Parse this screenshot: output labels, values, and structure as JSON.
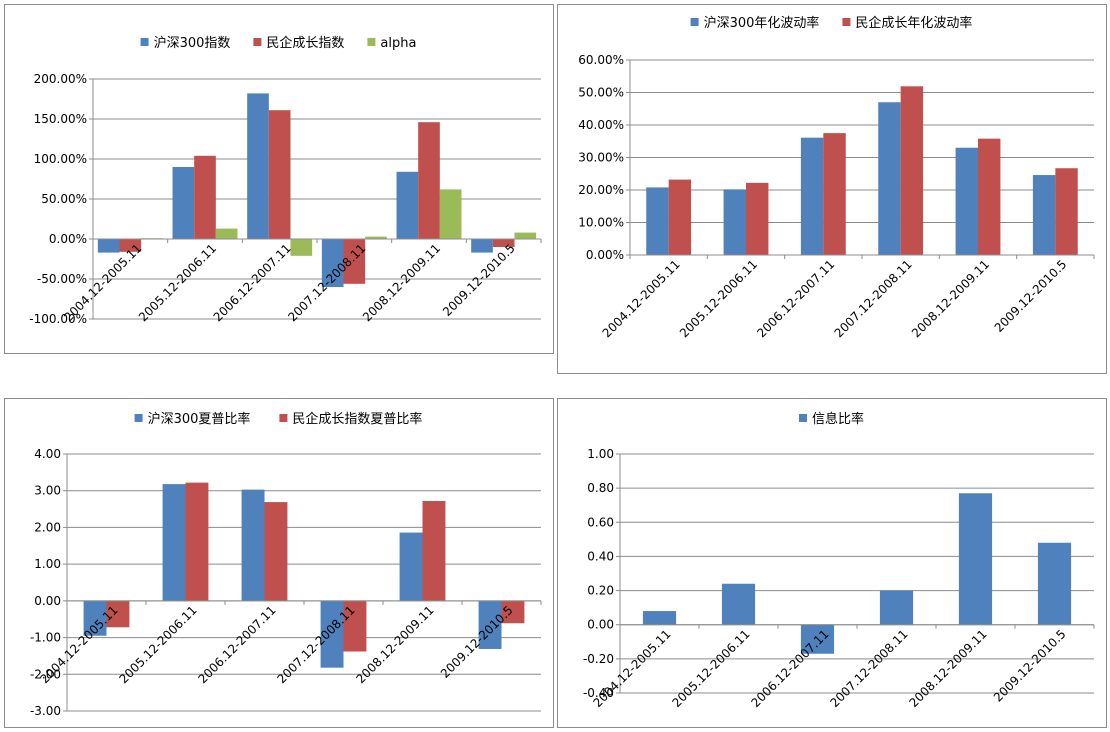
{
  "chart_data": [
    {
      "type": "bar",
      "categories": [
        "2004.12-2005.11",
        "2005.12-2006.11",
        "2006.12-2007.11",
        "2007.12-2008.11",
        "2008.12-2009.11",
        "2009.12-2010.5"
      ],
      "series": [
        {
          "name": "沪深300指数",
          "color": "#4f81bd",
          "values": [
            -17,
            90,
            182,
            -60,
            84,
            -17
          ]
        },
        {
          "name": "民企成长指数",
          "color": "#c0504d",
          "values": [
            -16,
            104,
            161,
            -56,
            146,
            -10
          ]
        },
        {
          "name": "alpha",
          "color": "#9bbb59",
          "values": [
            1,
            13,
            -21,
            3,
            62,
            8
          ]
        }
      ],
      "ylim": [
        -100,
        200
      ],
      "yticks": [
        -100,
        -50,
        0,
        50,
        100,
        150,
        200
      ],
      "ytick_labels": [
        "-100.00%",
        "-50.00%",
        "0.00%",
        "50.00%",
        "100.00%",
        "150.00%",
        "200.00%"
      ],
      "legend_position": "top",
      "title": ""
    },
    {
      "type": "bar",
      "categories": [
        "2004.12-2005.11",
        "2005.12-2006.11",
        "2006.12-2007.11",
        "2007.12-2008.11",
        "2008.12-2009.11",
        "2009.12-2010.5"
      ],
      "series": [
        {
          "name": "沪深300年化波动率",
          "color": "#4f81bd",
          "values": [
            20.8,
            20.2,
            36.1,
            47.0,
            33.0,
            24.6
          ]
        },
        {
          "name": "民企成长年化波动率",
          "color": "#c0504d",
          "values": [
            23.2,
            22.2,
            37.5,
            51.9,
            35.8,
            26.7
          ]
        }
      ],
      "ylim": [
        0,
        60
      ],
      "yticks": [
        0,
        10,
        20,
        30,
        40,
        50,
        60
      ],
      "ytick_labels": [
        "0.00%",
        "10.00%",
        "20.00%",
        "30.00%",
        "40.00%",
        "50.00%",
        "60.00%"
      ],
      "legend_position": "top",
      "title": ""
    },
    {
      "type": "bar",
      "categories": [
        "2004.12-2005.11",
        "2005.12-2006.11",
        "2006.12-2007.11",
        "2007.12-2008.11",
        "2008.12-2009.11",
        "2009.12-2010.5"
      ],
      "series": [
        {
          "name": "沪深300夏普比率",
          "color": "#4f81bd",
          "values": [
            -0.95,
            3.18,
            3.03,
            -1.82,
            1.86,
            -1.31
          ]
        },
        {
          "name": "民企成长指数夏普比率",
          "color": "#c0504d",
          "values": [
            -0.72,
            3.22,
            2.69,
            -1.38,
            2.72,
            -0.61
          ]
        }
      ],
      "ylim": [
        -3,
        4
      ],
      "yticks": [
        -3,
        -2,
        -1,
        0,
        1,
        2,
        3,
        4
      ],
      "ytick_labels": [
        "-3.00",
        "-2.00",
        "-1.00",
        "0.00",
        "1.00",
        "2.00",
        "3.00",
        "4.00"
      ],
      "legend_position": "top",
      "title": ""
    },
    {
      "type": "bar",
      "categories": [
        "2004.12-2005.11",
        "2005.12-2006.11",
        "2006.12-2007.11",
        "2007.12-2008.11",
        "2008.12-2009.11",
        "2009.12-2010.5"
      ],
      "series": [
        {
          "name": "信息比率",
          "color": "#4f81bd",
          "values": [
            0.08,
            0.24,
            -0.17,
            0.2,
            0.77,
            0.48
          ]
        }
      ],
      "ylim": [
        -0.4,
        1.0
      ],
      "yticks": [
        -0.4,
        -0.2,
        0,
        0.2,
        0.4,
        0.6,
        0.8,
        1.0
      ],
      "ytick_labels": [
        "-0.40",
        "-0.20",
        "0.00",
        "0.20",
        "0.40",
        "0.60",
        "0.80",
        "1.00"
      ],
      "legend_position": "top",
      "title": ""
    }
  ]
}
